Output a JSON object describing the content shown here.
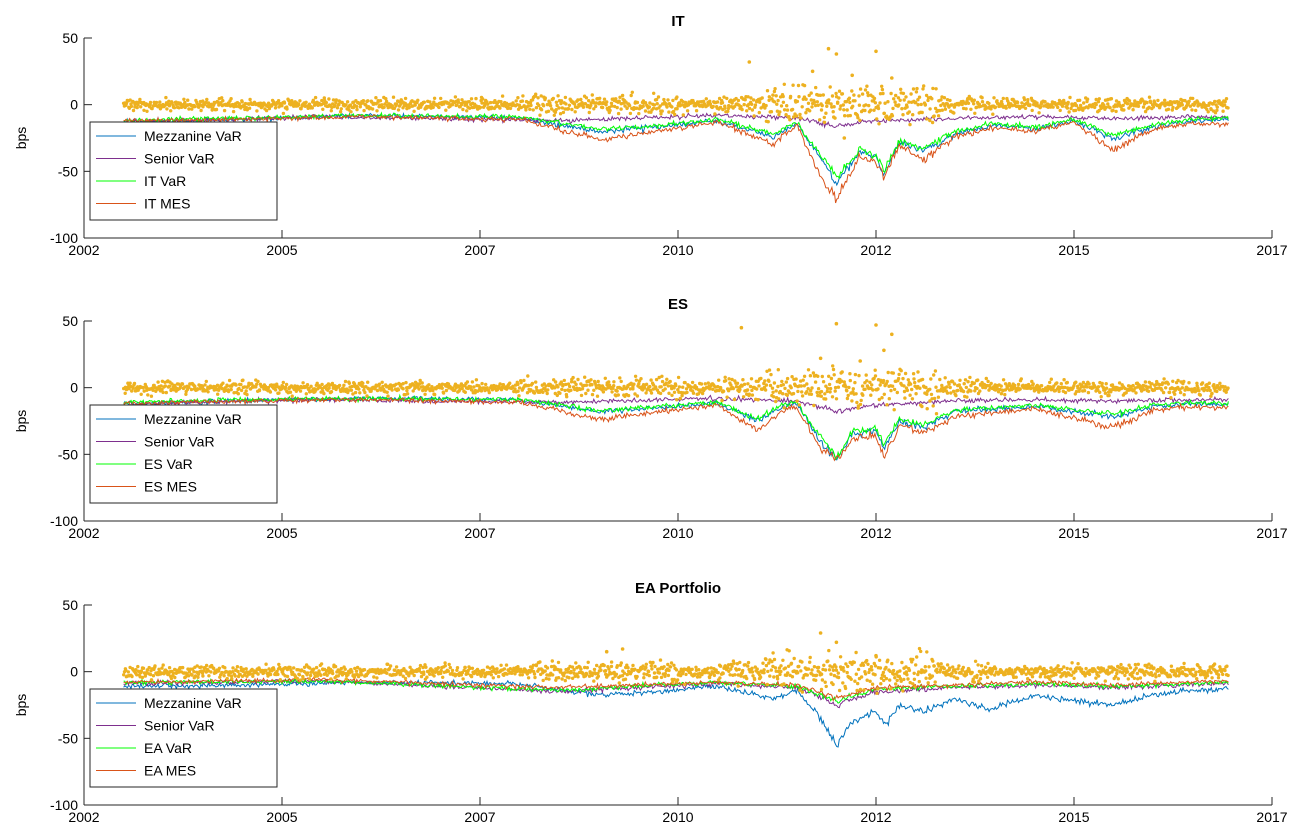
{
  "colors": {
    "mezzanine": "#0072BD",
    "senior": "#7E2F8E",
    "var": "#00FF00",
    "mes": "#D95319",
    "scatter": "#EDB120"
  },
  "chart_data": [
    {
      "type": "line",
      "title": "IT",
      "ylabel": "bps",
      "xlim": [
        2002,
        2017
      ],
      "ylim": [
        -100,
        50
      ],
      "xticks": [
        "2002",
        "2005",
        "2007",
        "2010",
        "2012",
        "2015",
        "2017"
      ],
      "yticks": [
        "50",
        "0",
        "-50",
        "-100"
      ],
      "grid": false,
      "legend_location": "bottom-left",
      "series": [
        {
          "name": "Mezzanine VaR",
          "x": [
            2002.5,
            2004.0,
            2005.5,
            2007.5,
            2008.5,
            2009.0,
            2010.0,
            2010.7,
            2011.0,
            2011.3,
            2011.5,
            2011.6,
            2011.8,
            2012.0,
            2012.1,
            2012.3,
            2012.6,
            2013.0,
            2013.5,
            2014.0,
            2014.5,
            2015.0,
            2015.3,
            2015.6,
            2016.0,
            2016.4
          ],
          "y": [
            -13,
            -11,
            -8,
            -10,
            -20,
            -18,
            -12,
            -25,
            -14,
            -40,
            -60,
            -50,
            -35,
            -40,
            -52,
            -28,
            -35,
            -22,
            -15,
            -18,
            -12,
            -25,
            -20,
            -15,
            -12,
            -11
          ]
        },
        {
          "name": "Senior VaR",
          "x": [
            2002.5,
            2005.0,
            2008.0,
            2010.0,
            2011.0,
            2011.5,
            2012.0,
            2013.0,
            2014.0,
            2015.0,
            2016.4
          ],
          "y": [
            -13,
            -9,
            -12,
            -8,
            -10,
            -16,
            -12,
            -10,
            -9,
            -10,
            -9
          ]
        },
        {
          "name": "IT VaR",
          "x": [
            2002.5,
            2004.0,
            2005.5,
            2007.5,
            2008.5,
            2009.0,
            2010.0,
            2010.7,
            2011.0,
            2011.3,
            2011.5,
            2011.6,
            2011.8,
            2012.0,
            2012.1,
            2012.3,
            2012.6,
            2013.0,
            2013.5,
            2014.0,
            2014.5,
            2015.0,
            2015.3,
            2015.6,
            2016.0,
            2016.4
          ],
          "y": [
            -12,
            -10,
            -8,
            -9,
            -18,
            -17,
            -11,
            -22,
            -13,
            -38,
            -55,
            -48,
            -33,
            -38,
            -50,
            -27,
            -33,
            -20,
            -14,
            -17,
            -11,
            -23,
            -18,
            -14,
            -11,
            -10
          ]
        },
        {
          "name": "IT MES",
          "x": [
            2002.5,
            2004.0,
            2005.5,
            2007.5,
            2008.5,
            2009.0,
            2010.0,
            2010.7,
            2011.0,
            2011.3,
            2011.5,
            2011.6,
            2011.8,
            2012.0,
            2012.1,
            2012.3,
            2012.6,
            2013.0,
            2013.5,
            2014.0,
            2014.5,
            2015.0,
            2015.3,
            2015.6,
            2016.0,
            2016.4
          ],
          "y": [
            -12,
            -11,
            -9,
            -11,
            -26,
            -22,
            -13,
            -30,
            -15,
            -55,
            -73,
            -60,
            -38,
            -44,
            -54,
            -30,
            -42,
            -24,
            -17,
            -20,
            -13,
            -35,
            -24,
            -17,
            -14,
            -15
          ]
        }
      ],
      "scatter": {
        "points": [
          [
            2010.4,
            32
          ],
          [
            2011.4,
            42
          ],
          [
            2011.5,
            38
          ],
          [
            2012.0,
            40
          ],
          [
            2011.6,
            -25
          ],
          [
            2011.7,
            22
          ],
          [
            2012.2,
            20
          ],
          [
            2011.2,
            25
          ]
        ]
      }
    },
    {
      "type": "line",
      "title": "ES",
      "ylabel": "bps",
      "xlim": [
        2002,
        2017
      ],
      "ylim": [
        -100,
        50
      ],
      "xticks": [
        "2002",
        "2005",
        "2007",
        "2010",
        "2012",
        "2015",
        "2017"
      ],
      "yticks": [
        "50",
        "0",
        "-50",
        "-100"
      ],
      "grid": false,
      "legend_location": "bottom-left",
      "series": [
        {
          "name": "Mezzanine VaR",
          "x": [
            2002.5,
            2004.0,
            2005.5,
            2007.5,
            2008.5,
            2009.0,
            2010.0,
            2010.5,
            2010.8,
            2011.0,
            2011.3,
            2011.5,
            2011.7,
            2012.0,
            2012.1,
            2012.3,
            2012.6,
            2013.0,
            2014.0,
            2015.0,
            2015.5,
            2016.0,
            2016.4
          ],
          "y": [
            -12,
            -10,
            -8,
            -9,
            -18,
            -16,
            -12,
            -25,
            -15,
            -12,
            -40,
            -55,
            -35,
            -32,
            -45,
            -25,
            -30,
            -18,
            -14,
            -22,
            -14,
            -12,
            -13
          ]
        },
        {
          "name": "Senior VaR",
          "x": [
            2002.5,
            2005.0,
            2008.0,
            2010.0,
            2011.0,
            2011.5,
            2012.0,
            2013.0,
            2014.0,
            2015.0,
            2016.4
          ],
          "y": [
            -12,
            -9,
            -11,
            -8,
            -10,
            -18,
            -13,
            -10,
            -9,
            -10,
            -9
          ]
        },
        {
          "name": "ES VaR",
          "x": [
            2002.5,
            2004.0,
            2005.5,
            2007.5,
            2008.5,
            2009.0,
            2010.0,
            2010.5,
            2010.8,
            2011.0,
            2011.3,
            2011.5,
            2011.7,
            2012.0,
            2012.1,
            2012.3,
            2012.6,
            2013.0,
            2014.0,
            2015.0,
            2015.5,
            2016.0,
            2016.4
          ],
          "y": [
            -11,
            -9,
            -8,
            -9,
            -17,
            -15,
            -11,
            -23,
            -14,
            -11,
            -37,
            -52,
            -33,
            -30,
            -42,
            -24,
            -28,
            -17,
            -13,
            -20,
            -13,
            -11,
            -12
          ]
        },
        {
          "name": "ES MES",
          "x": [
            2002.5,
            2004.0,
            2005.5,
            2007.5,
            2008.5,
            2009.0,
            2010.0,
            2010.5,
            2010.8,
            2011.0,
            2011.3,
            2011.5,
            2011.7,
            2012.0,
            2012.1,
            2012.3,
            2012.6,
            2013.0,
            2014.0,
            2015.0,
            2015.5,
            2016.0,
            2016.4
          ],
          "y": [
            -12,
            -10,
            -9,
            -11,
            -24,
            -20,
            -13,
            -32,
            -18,
            -14,
            -46,
            -54,
            -38,
            -36,
            -54,
            -28,
            -34,
            -22,
            -16,
            -30,
            -17,
            -14,
            -15
          ]
        }
      ],
      "scatter": {
        "points": [
          [
            2010.3,
            45
          ],
          [
            2011.5,
            48
          ],
          [
            2012.0,
            47
          ],
          [
            2012.2,
            40
          ],
          [
            2011.3,
            22
          ],
          [
            2011.8,
            20
          ],
          [
            2012.1,
            28
          ]
        ]
      }
    },
    {
      "type": "line",
      "title": "EA Portfolio",
      "ylabel": "bps",
      "xlim": [
        2002,
        2017
      ],
      "ylim": [
        -100,
        50
      ],
      "xticks": [
        "2002",
        "2005",
        "2007",
        "2010",
        "2012",
        "2015",
        "2017"
      ],
      "yticks": [
        "50",
        "0",
        "-50",
        "-100"
      ],
      "grid": false,
      "legend_location": "bottom-left",
      "series": [
        {
          "name": "Mezzanine VaR",
          "x": [
            2002.5,
            2004.0,
            2005.5,
            2007.5,
            2008.5,
            2009.0,
            2010.0,
            2010.7,
            2011.0,
            2011.3,
            2011.5,
            2011.7,
            2012.0,
            2012.1,
            2012.3,
            2012.6,
            2013.0,
            2013.4,
            2014.0,
            2015.0,
            2015.5,
            2016.0,
            2016.4
          ],
          "y": [
            -11,
            -10,
            -8,
            -9,
            -18,
            -16,
            -11,
            -20,
            -14,
            -35,
            -55,
            -38,
            -30,
            -40,
            -25,
            -30,
            -20,
            -28,
            -18,
            -25,
            -17,
            -14,
            -13
          ]
        },
        {
          "name": "Senior VaR",
          "x": [
            2002.5,
            2005.0,
            2008.0,
            2010.0,
            2011.0,
            2011.5,
            2012.0,
            2013.0,
            2014.0,
            2015.0,
            2016.4
          ],
          "y": [
            -9,
            -7,
            -15,
            -9,
            -12,
            -25,
            -15,
            -12,
            -10,
            -12,
            -9
          ]
        },
        {
          "name": "EA VaR",
          "x": [
            2002.5,
            2005.0,
            2008.0,
            2010.0,
            2011.0,
            2011.5,
            2012.0,
            2013.0,
            2014.0,
            2015.0,
            2016.4
          ],
          "y": [
            -8,
            -7,
            -14,
            -8,
            -11,
            -22,
            -13,
            -11,
            -9,
            -11,
            -8
          ]
        },
        {
          "name": "EA MES",
          "x": [
            2002.5,
            2005.0,
            2008.0,
            2010.0,
            2011.0,
            2011.5,
            2012.0,
            2013.0,
            2014.0,
            2015.0,
            2016.4
          ],
          "y": [
            -8,
            -6,
            -12,
            -8,
            -10,
            -20,
            -12,
            -10,
            -8,
            -10,
            -7
          ]
        }
      ],
      "scatter": {
        "points": [
          [
            2011.3,
            29
          ],
          [
            2011.5,
            22
          ],
          [
            2008.8,
            17
          ],
          [
            2008.6,
            15
          ],
          [
            2012.0,
            12
          ]
        ]
      }
    }
  ]
}
